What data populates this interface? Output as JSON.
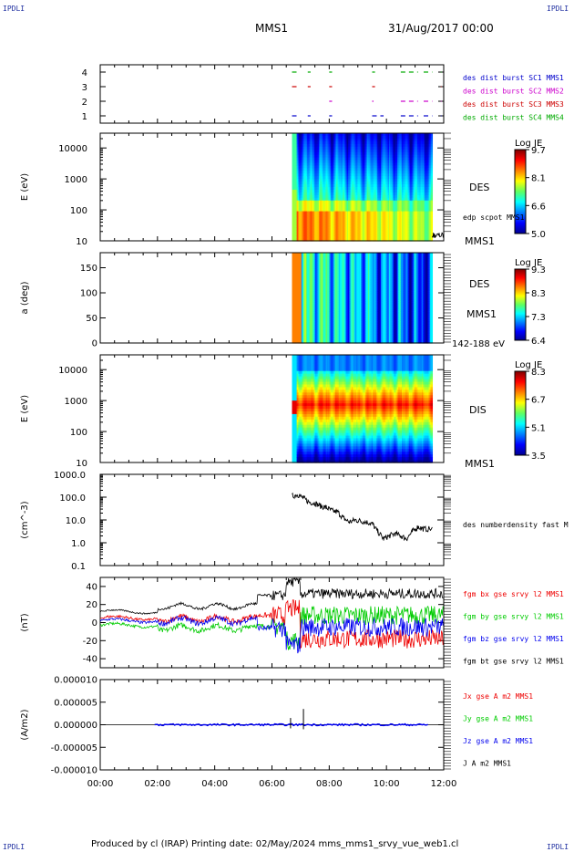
{
  "corner_left": "IPDLI",
  "corner_right": "IPDLI",
  "header": {
    "mission": "MMS1",
    "datetime": "31/Aug/2017 00:00"
  },
  "footer": "Produced by cl (IRAP)   Printing date: 02/May/2024   mms_mms1_srvy_vue_web1.cl",
  "colors": {
    "c1": "#0000cc",
    "c2": "#cc00cc",
    "c3": "#cc0000",
    "c4": "#00aa00",
    "bx": "#ee0000",
    "by": "#00cc00",
    "bz": "#0000ee",
    "bt": "#000000"
  },
  "chart_data": [
    {
      "type": "line",
      "panel": "burst-availability",
      "ylim": [
        0.5,
        4.5
      ],
      "yticks": [
        "1",
        "2",
        "3",
        "4"
      ],
      "series": [
        {
          "name": "des dist burst SC1 MMS1",
          "level": 1,
          "segments": [
            [
              6.7,
              6.95
            ],
            [
              7.25,
              7.35
            ],
            [
              8.0,
              8.1
            ],
            [
              9.5,
              9.9
            ],
            [
              10.5,
              11.1
            ],
            [
              11.3,
              11.6
            ],
            [
              11.9,
              11.92
            ]
          ]
        },
        {
          "name": "des dist burst SC2 MMS2",
          "level": 2,
          "segments": [
            [
              8.0,
              8.1
            ],
            [
              9.5,
              9.55
            ],
            [
              10.5,
              11.1
            ],
            [
              11.3,
              11.6
            ],
            [
              11.9,
              11.92
            ]
          ]
        },
        {
          "name": "des dist burst SC3 MMS3",
          "level": 3,
          "segments": [
            [
              6.7,
              6.95
            ],
            [
              7.25,
              7.35
            ],
            [
              8.0,
              8.1
            ],
            [
              9.5,
              9.6
            ],
            [
              11.9,
              11.92
            ]
          ]
        },
        {
          "name": "des dist burst SC4 MMS4",
          "level": 4,
          "segments": [
            [
              6.7,
              6.95
            ],
            [
              7.25,
              7.35
            ],
            [
              8.0,
              8.1
            ],
            [
              9.5,
              9.6
            ],
            [
              10.5,
              11.1
            ],
            [
              11.3,
              11.6
            ],
            [
              11.9,
              11.92
            ]
          ]
        }
      ]
    },
    {
      "type": "heatmap",
      "panel": "des-energy-spectrogram",
      "ylabel": "E (eV)",
      "yscale": "log",
      "ylim": [
        10,
        30000
      ],
      "yticks": [
        "10",
        "100",
        "1000",
        "10000"
      ],
      "data_start": 6.7,
      "data_end": 11.6,
      "label": "DES",
      "label2": "MMS1",
      "overlay_label": "edp scpot MMS1",
      "colorbar": {
        "title": "Log JE",
        "ticks": [
          "9.7",
          "8.1",
          "6.6",
          "5.0"
        ]
      }
    },
    {
      "type": "heatmap",
      "panel": "des-pitch-angle",
      "ylabel": "a (deg)",
      "ylim": [
        0,
        180
      ],
      "yticks": [
        "0",
        "50",
        "100",
        "150"
      ],
      "data_start": 6.7,
      "data_end": 11.6,
      "label": "DES",
      "label2": "MMS1",
      "energy_label": "142-188 eV",
      "colorbar": {
        "title": "Log JE",
        "ticks": [
          "9.3",
          "8.3",
          "7.3",
          "6.4"
        ]
      }
    },
    {
      "type": "heatmap",
      "panel": "dis-energy-spectrogram",
      "ylabel": "E (eV)",
      "yscale": "log",
      "ylim": [
        10,
        30000
      ],
      "yticks": [
        "10",
        "100",
        "1000",
        "10000"
      ],
      "data_start": 6.7,
      "data_end": 11.6,
      "label": "DIS",
      "label2": "MMS1",
      "colorbar": {
        "title": "Log JE",
        "ticks": [
          "8.3",
          "6.7",
          "5.1",
          "3.5"
        ]
      }
    },
    {
      "type": "line",
      "panel": "number-density",
      "ylabel": "(cm^-3)",
      "yscale": "log",
      "ylim": [
        0.1,
        1000
      ],
      "yticks": [
        "0.1",
        "1.0",
        "10.0",
        "100.0",
        "1000.0"
      ],
      "series": [
        {
          "name": "des numberdensity fast M",
          "x": [
            6.7,
            6.9,
            7.1,
            7.3,
            7.5,
            7.7,
            7.9,
            8.1,
            8.3,
            8.5,
            8.7,
            8.9,
            9.1,
            9.3,
            9.5,
            9.7,
            9.9,
            10.1,
            10.3,
            10.5,
            10.7,
            10.9,
            11.1,
            11.3,
            11.6
          ],
          "y": [
            110,
            130,
            90,
            60,
            55,
            40,
            35,
            25,
            22,
            12,
            8,
            10,
            9,
            8,
            7,
            3,
            1.5,
            2,
            2.5,
            2,
            1.5,
            3,
            5,
            4,
            4
          ]
        }
      ]
    },
    {
      "type": "line",
      "panel": "magnetic-field",
      "ylabel": "(nT)",
      "ylim": [
        -50,
        50
      ],
      "yticks": [
        "-40",
        "-20",
        "0",
        "20",
        "40"
      ],
      "series": [
        {
          "name": "fgm bx gse srvy l2 MMS1"
        },
        {
          "name": "fgm by gse srvy l2 MMS1"
        },
        {
          "name": "fgm bz gse srvy l2 MMS1"
        },
        {
          "name": "fgm bt gse srvy l2 MMS1"
        }
      ]
    },
    {
      "type": "line",
      "panel": "current-density",
      "ylabel": "(A/m2)",
      "ylim": [
        -1e-05,
        1e-05
      ],
      "yticks": [
        "-0.000010",
        "-0.000005",
        "0.000000",
        "0.000005",
        "0.000010"
      ],
      "series": [
        {
          "name": "Jx gse A m2 MMS1"
        },
        {
          "name": "Jy gse A m2 MMS1"
        },
        {
          "name": "Jz gse A m2 MMS1"
        },
        {
          "name": "J A m2 MMS1"
        }
      ]
    }
  ],
  "time_axis": {
    "range_hours": [
      0,
      12
    ],
    "tick_labels": [
      "00:00",
      "02:00",
      "04:00",
      "06:00",
      "08:00",
      "10:00",
      "12:00"
    ]
  }
}
